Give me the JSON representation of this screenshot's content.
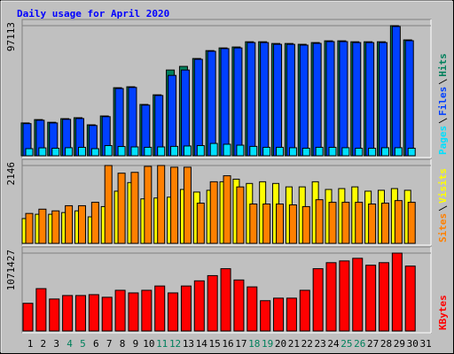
{
  "chart_data": [
    {
      "type": "bar",
      "title": "Daily usage for April 2020",
      "ylim": [
        0,
        97113
      ],
      "yticks": [
        97113
      ],
      "series": [
        {
          "name": "Pages",
          "color": "#00e0ff",
          "values": [
            5300,
            5900,
            5600,
            6000,
            6300,
            5300,
            7600,
            6900,
            6600,
            6300,
            6600,
            7000,
            7300,
            7600,
            9200,
            8600,
            7900,
            7000,
            6300,
            6300,
            6000,
            5600,
            6300,
            6300,
            6000,
            5600,
            5600,
            6000,
            6000,
            5600,
            null
          ]
        },
        {
          "name": "Files",
          "color": "#0040ff",
          "values": [
            24000,
            26500,
            24500,
            27200,
            27800,
            22600,
            29200,
            50200,
            51000,
            37800,
            45000,
            60000,
            64000,
            72000,
            78000,
            80000,
            80500,
            84500,
            84500,
            83200,
            83200,
            82600,
            83900,
            85200,
            85200,
            84500,
            84500,
            84500,
            96500,
            85900,
            null
          ]
        },
        {
          "name": "Hits",
          "color": "#00805c",
          "values": [
            24500,
            27000,
            25000,
            27700,
            28400,
            23100,
            29700,
            50800,
            51500,
            38300,
            45500,
            64000,
            66700,
            72600,
            78500,
            80500,
            81200,
            85100,
            85100,
            83800,
            83800,
            83200,
            84500,
            85800,
            85800,
            85100,
            85100,
            85100,
            97113,
            86500,
            null
          ]
        }
      ]
    },
    {
      "type": "bar",
      "ylim": [
        0,
        2146
      ],
      "yticks": [
        2146
      ],
      "series": [
        {
          "name": "Sites",
          "color": "#ff8000",
          "values": [
            825,
            943,
            896,
            1038,
            1038,
            1132,
            2146,
            1934,
            1957,
            2122,
            2146,
            2099,
            2099,
            1108,
            1698,
            1863,
            1556,
            1085,
            1085,
            1085,
            1061,
            1014,
            1203,
            1132,
            1132,
            1132,
            1085,
            1108,
            1179,
            1132,
            null
          ]
        },
        {
          "name": "Visits",
          "color": "#ffff00",
          "values": [
            684,
            802,
            802,
            849,
            896,
            731,
            1014,
            1439,
            1675,
            1226,
            1250,
            1273,
            1486,
            1415,
            1463,
            1698,
            1769,
            1651,
            1698,
            1651,
            1557,
            1557,
            1698,
            1486,
            1510,
            1557,
            1439,
            1463,
            1510,
            1463,
            null
          ]
        }
      ]
    },
    {
      "type": "bar",
      "ylim": [
        0,
        1071427
      ],
      "yticks": [
        1071427
      ],
      "categories": [
        "1",
        "2",
        "3",
        "4",
        "5",
        "6",
        "7",
        "8",
        "9",
        "10",
        "11",
        "12",
        "13",
        "14",
        "15",
        "16",
        "17",
        "18",
        "19",
        "20",
        "21",
        "22",
        "23",
        "24",
        "25",
        "26",
        "27",
        "28",
        "29",
        "30",
        "31"
      ],
      "category_colors": [
        "#000000",
        "#000000",
        "#000000",
        "#00805c",
        "#00805c",
        "#000000",
        "#000000",
        "#000000",
        "#000000",
        "#000000",
        "#00805c",
        "#00805c",
        "#000000",
        "#000000",
        "#000000",
        "#000000",
        "#000000",
        "#00805c",
        "#00805c",
        "#000000",
        "#000000",
        "#000000",
        "#000000",
        "#000000",
        "#00805c",
        "#00805c",
        "#000000",
        "#000000",
        "#000000",
        "#000000",
        "#000000"
      ],
      "series": [
        {
          "name": "KBytes",
          "color": "#ff0000",
          "values": [
            381000,
            583000,
            440000,
            488000,
            488000,
            500000,
            464000,
            560000,
            524000,
            560000,
            619000,
            524000,
            619000,
            690000,
            762000,
            857000,
            702000,
            607000,
            417000,
            452000,
            452000,
            560000,
            857000,
            940000,
            964000,
            1000000,
            905000,
            940000,
            1071427,
            893000,
            null
          ]
        }
      ]
    }
  ]
}
